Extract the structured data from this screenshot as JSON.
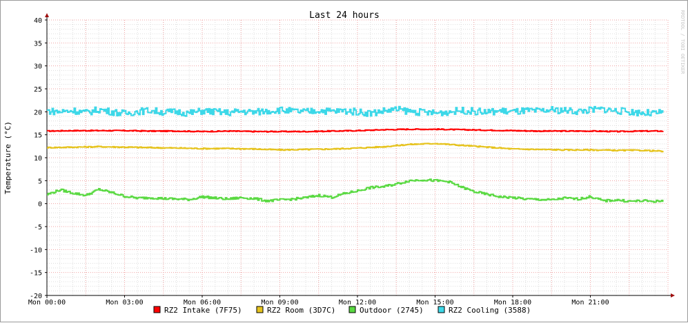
{
  "chart_data": {
    "type": "line",
    "title": "Last 24 hours",
    "ylabel": "Temperature (°C)",
    "xlabel": "",
    "watermark": "RRDTOOL / TOBI OETIKER",
    "ylim": [
      -20,
      40
    ],
    "y_ticks": [
      -20,
      -15,
      -10,
      -5,
      0,
      5,
      10,
      15,
      20,
      25,
      30,
      35,
      40
    ],
    "xlim_hours": [
      0,
      24
    ],
    "x_ticks": [
      {
        "hour": 0,
        "label": "Mon 00:00"
      },
      {
        "hour": 3,
        "label": "Mon 03:00"
      },
      {
        "hour": 6,
        "label": "Mon 06:00"
      },
      {
        "hour": 9,
        "label": "Mon 09:00"
      },
      {
        "hour": 12,
        "label": "Mon 12:00"
      },
      {
        "hour": 15,
        "label": "Mon 15:00"
      },
      {
        "hour": 18,
        "label": "Mon 18:00"
      },
      {
        "hour": 21,
        "label": "Mon 21:00"
      }
    ],
    "grid": true,
    "legend_position": "bottom",
    "series": [
      {
        "name": "RZ2 Intake (7F75)",
        "color": "#ff0000",
        "x": [
          0,
          1,
          2,
          3,
          4,
          5,
          6,
          7,
          8,
          9,
          10,
          11,
          12,
          13,
          14,
          15,
          16,
          17,
          18,
          19,
          20,
          21,
          22,
          23,
          23.8
        ],
        "values": [
          15.8,
          15.9,
          15.9,
          15.9,
          15.8,
          15.8,
          15.7,
          15.8,
          15.7,
          15.7,
          15.7,
          15.8,
          15.9,
          16.1,
          16.2,
          16.2,
          16.1,
          16.0,
          15.9,
          15.8,
          15.8,
          15.8,
          15.7,
          15.8,
          15.8
        ]
      },
      {
        "name": "RZ2 Room (3D7C)",
        "color": "#e6c31e",
        "x": [
          0,
          1,
          2,
          3,
          4,
          5,
          6,
          7,
          8,
          9,
          10,
          11,
          12,
          13,
          14,
          15,
          16,
          17,
          18,
          19,
          20,
          21,
          22,
          23,
          23.8
        ],
        "values": [
          12.2,
          12.3,
          12.4,
          12.3,
          12.2,
          12.1,
          12.0,
          12.0,
          11.9,
          11.7,
          11.8,
          11.9,
          12.1,
          12.4,
          12.9,
          13.1,
          12.7,
          12.3,
          11.9,
          11.8,
          11.7,
          11.7,
          11.6,
          11.6,
          11.4
        ]
      },
      {
        "name": "Outdoor (2745)",
        "color": "#5ad942",
        "x": [
          0,
          0.5,
          1,
          1.5,
          2,
          2.5,
          3,
          3.5,
          4,
          4.5,
          5,
          5.5,
          6,
          6.5,
          7,
          7.5,
          8,
          8.5,
          9,
          9.5,
          10,
          10.5,
          11,
          11.5,
          12,
          12.5,
          13,
          13.5,
          14,
          14.5,
          15,
          15.5,
          16,
          16.5,
          17,
          17.5,
          18,
          18.5,
          19,
          19.5,
          20,
          20.5,
          21,
          21.5,
          22,
          22.5,
          23,
          23.5,
          23.8
        ],
        "values": [
          2.0,
          3.0,
          2.3,
          1.8,
          3.1,
          2.4,
          1.6,
          1.2,
          1.3,
          1.1,
          1.0,
          0.9,
          1.5,
          1.2,
          1.0,
          1.3,
          1.1,
          0.6,
          0.8,
          1.0,
          1.3,
          1.8,
          1.4,
          2.2,
          2.8,
          3.5,
          3.7,
          4.3,
          5.0,
          5.2,
          5.0,
          4.8,
          3.6,
          2.6,
          2.0,
          1.5,
          1.3,
          1.0,
          0.9,
          0.8,
          1.2,
          1.0,
          1.5,
          0.6,
          0.8,
          0.5,
          0.6,
          0.5,
          0.5
        ]
      },
      {
        "name": "RZ2 Cooling (3588)",
        "color": "#3dd8e8",
        "x": [
          0,
          0.5,
          1,
          1.5,
          2,
          2.5,
          3,
          3.5,
          4,
          4.5,
          5,
          5.5,
          6,
          6.5,
          7,
          7.5,
          8,
          8.5,
          9,
          9.5,
          10,
          10.5,
          11,
          11.5,
          12,
          12.5,
          13,
          13.5,
          14,
          14.5,
          15,
          15.5,
          16,
          16.5,
          17,
          17.5,
          18,
          18.5,
          19,
          19.5,
          20,
          20.5,
          21,
          21.5,
          22,
          22.5,
          23,
          23.5,
          23.8
        ],
        "values": [
          20.2,
          20.0,
          20.3,
          19.8,
          20.5,
          20.0,
          19.6,
          20.1,
          20.3,
          19.9,
          20.0,
          19.7,
          20.2,
          20.0,
          19.8,
          20.1,
          19.9,
          20.2,
          20.4,
          20.1,
          20.0,
          20.3,
          20.1,
          20.2,
          20.0,
          19.7,
          20.2,
          20.5,
          20.1,
          19.9,
          19.7,
          20.0,
          20.3,
          20.1,
          19.9,
          20.2,
          20.0,
          20.2,
          20.1,
          20.4,
          20.3,
          20.1,
          20.4,
          20.6,
          20.2,
          20.0,
          19.8,
          19.6,
          19.9
        ]
      }
    ]
  }
}
